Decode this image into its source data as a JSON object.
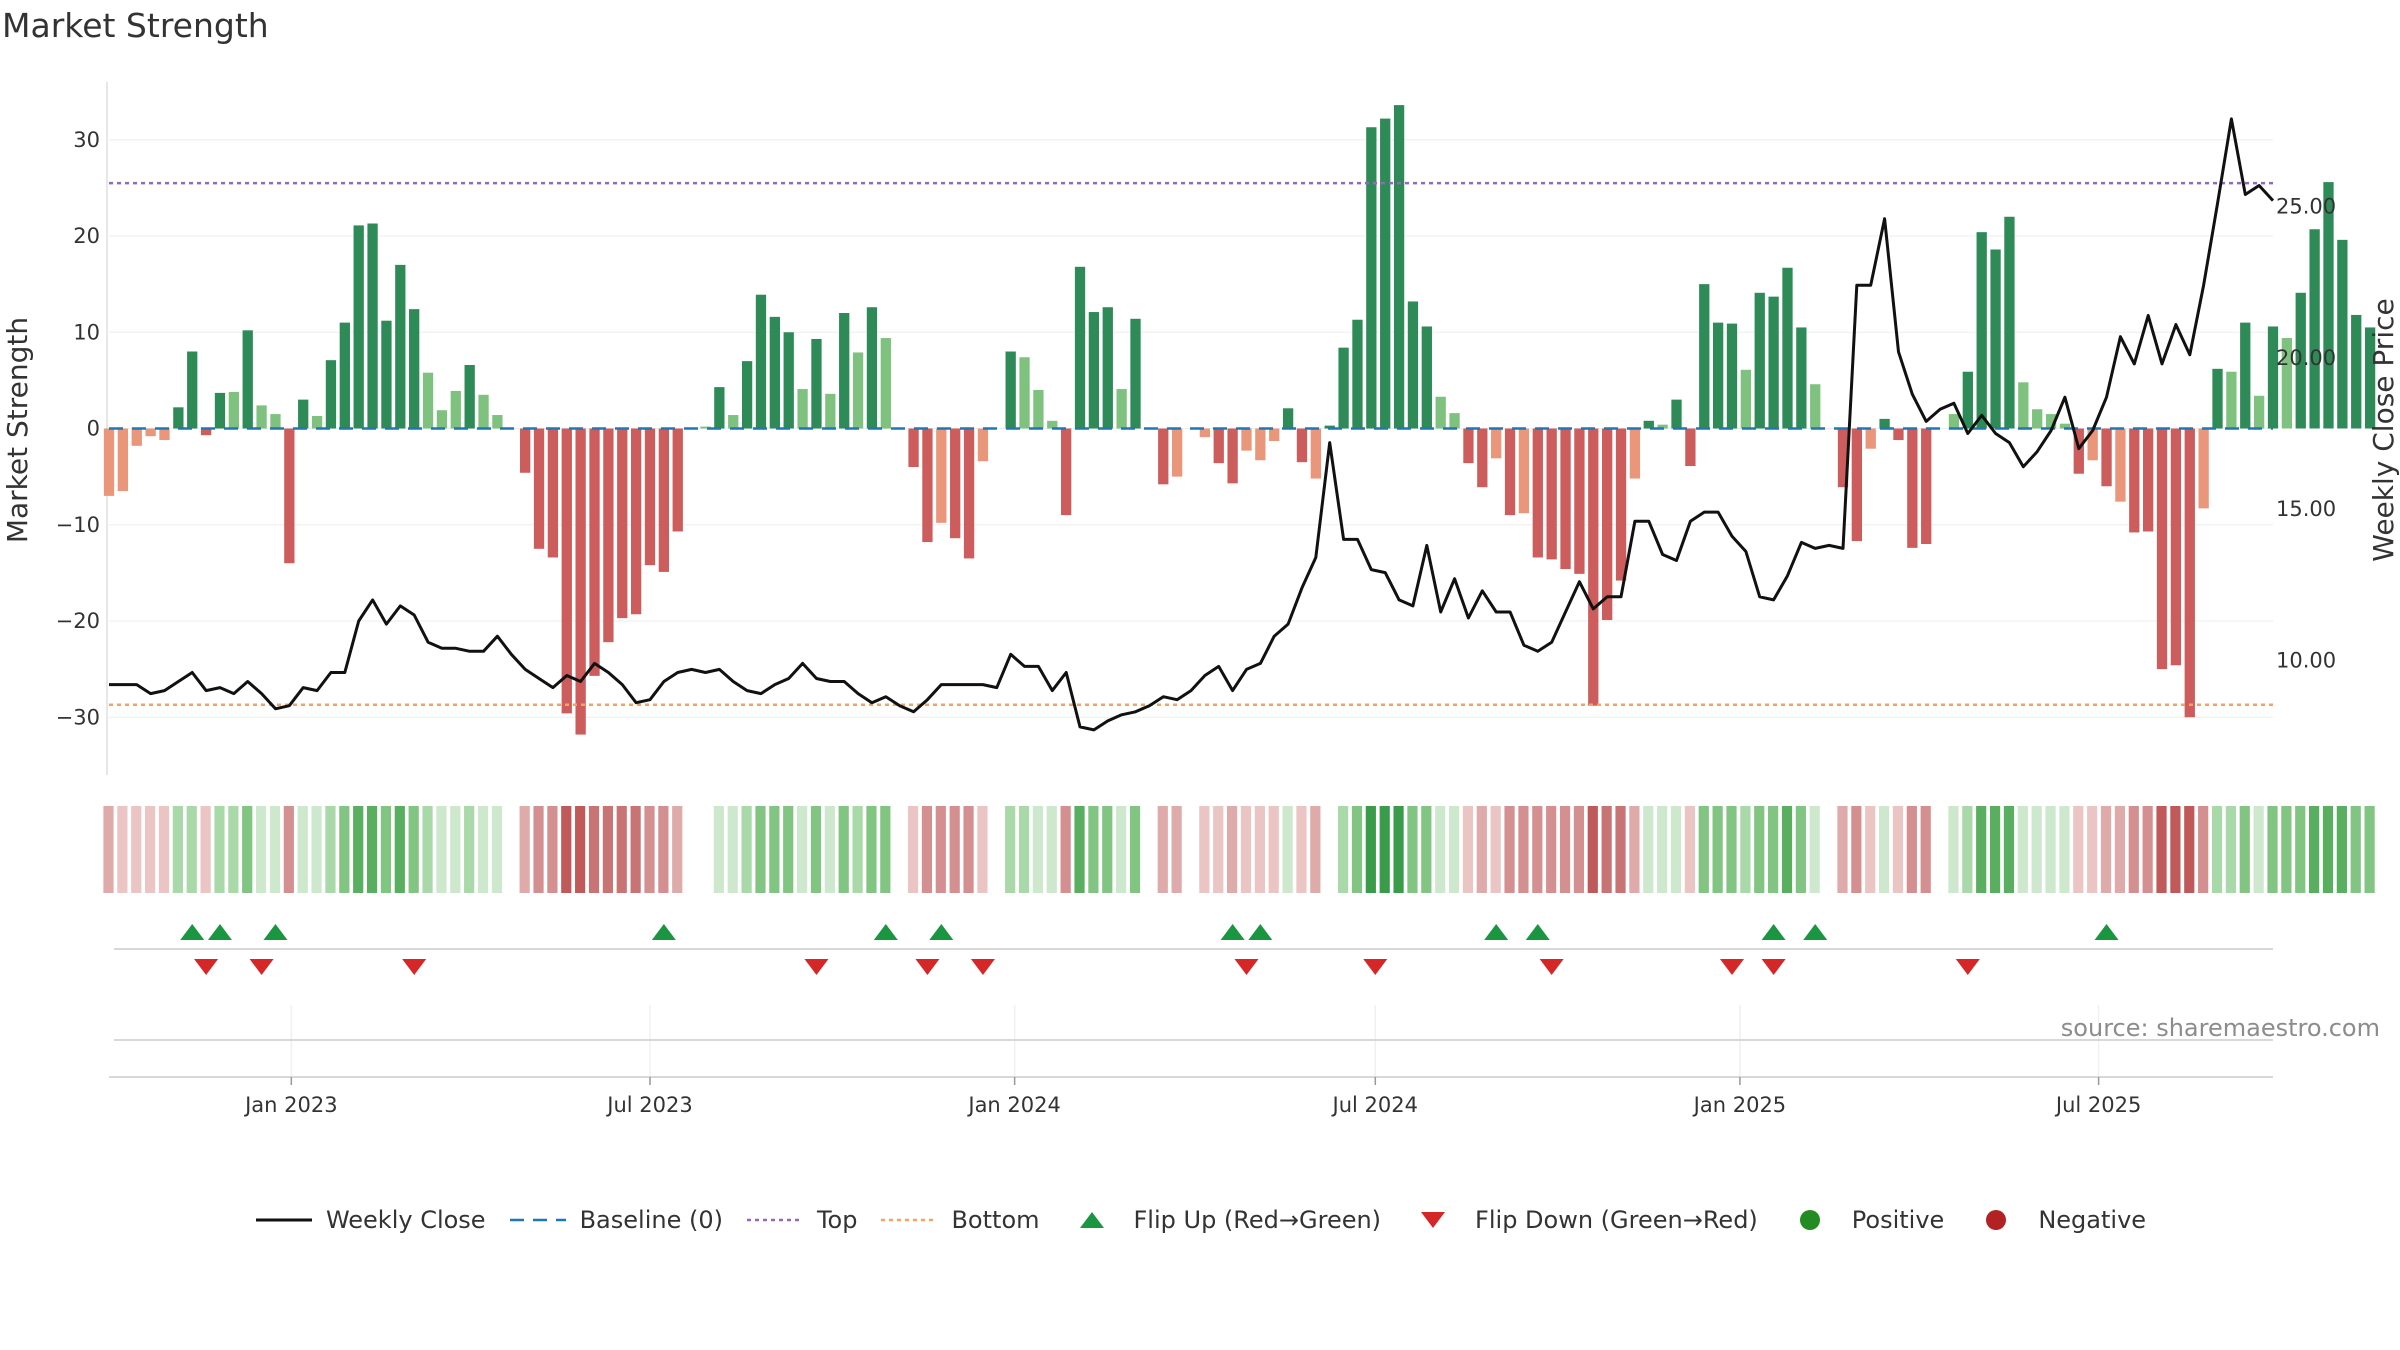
{
  "title": "Market Strength",
  "source_text": "source: sharemaestro.com",
  "colors": {
    "strong_green": "#2e8b57",
    "light_green": "#7fc27f",
    "strong_red": "#cd5c5c",
    "light_red": "#e9967a",
    "close_line": "#111111",
    "baseline": "#1f77b4",
    "top": "#9467bd",
    "bottom": "#f4a460",
    "flip_up": "#1a9641",
    "flip_down": "#d62728",
    "positive": "#228b22",
    "negative": "#b22222"
  },
  "legend": [
    {
      "key": "close",
      "label": "Weekly Close",
      "icon": "line-icon"
    },
    {
      "key": "baseline",
      "label": "Baseline (0)",
      "icon": "dashed-line-icon"
    },
    {
      "key": "top",
      "label": "Top",
      "icon": "dotted-line-icon"
    },
    {
      "key": "bottom",
      "label": "Bottom",
      "icon": "dotted-line-icon"
    },
    {
      "key": "flip_up",
      "label": "Flip Up (Red→Green)",
      "icon": "triangle-up-icon"
    },
    {
      "key": "flip_down",
      "label": "Flip Down (Green→Red)",
      "icon": "triangle-down-icon"
    },
    {
      "key": "positive",
      "label": "Positive",
      "icon": "circle-icon"
    },
    {
      "key": "negative",
      "label": "Negative",
      "icon": "circle-icon"
    }
  ],
  "chart_data": {
    "type": "bar",
    "ylabel": "Market Strength",
    "ylabel_right": "Weekly Close Price",
    "ylim": [
      -36,
      36
    ],
    "yticks": [
      30,
      20,
      10,
      0,
      -10,
      -20,
      -30
    ],
    "yticks_labels": [
      "30",
      "20",
      "10",
      "0",
      "−10",
      "−20",
      "−30"
    ],
    "y2lim": [
      6.21,
      29.12
    ],
    "y2ticks": [
      25,
      20,
      15,
      10
    ],
    "y2ticks_labels": [
      "25.00",
      "20.00",
      "15.00",
      "10.00"
    ],
    "top_level": 25.5,
    "bottom_level": -28.7,
    "x_start": "2022-10-01",
    "x_end": "2025-09-27",
    "xticks": [
      "2023-01-01",
      "2023-07-01",
      "2024-01-01",
      "2024-07-01",
      "2025-01-01",
      "2025-07-01"
    ],
    "xticks_labels": [
      "Jan 2023",
      "Jul 2023",
      "Jan 2024",
      "Jul 2024",
      "Jan 2025",
      "Jul 2025"
    ],
    "strength": [
      -7,
      -6.5,
      -1.8,
      -0.8,
      -1.2,
      2.2,
      8,
      -0.7,
      3.7,
      3.8,
      10.2,
      2.4,
      1.5,
      -14,
      3,
      1.3,
      7.1,
      11,
      21.1,
      21.3,
      11.2,
      17,
      12.4,
      5.8,
      1.9,
      3.9,
      6.6,
      3.5,
      1.4,
      0,
      -4.6,
      -12.5,
      -13.4,
      -29.6,
      -31.8,
      -25.7,
      -22.2,
      -19.7,
      -19.3,
      -14.2,
      -14.9,
      -10.7,
      0,
      0.2,
      4.3,
      1.4,
      7,
      13.9,
      11.6,
      10,
      4.1,
      9.3,
      3.6,
      12,
      7.9,
      12.6,
      9.4,
      0,
      -4,
      -11.8,
      -9.8,
      -11.4,
      -13.5,
      -3.4,
      0,
      8,
      7.4,
      4,
      0.8,
      -9,
      16.8,
      12.1,
      12.6,
      4.1,
      11.4,
      0,
      -5.8,
      -5,
      0,
      -0.9,
      -3.6,
      -5.7,
      -2.3,
      -3.3,
      -1.3,
      2.1,
      -3.5,
      -5.2,
      0.3,
      8.4,
      11.3,
      31.3,
      32.2,
      33.6,
      13.2,
      10.6,
      3.3,
      1.6,
      -3.6,
      -6.1,
      -3.1,
      -9,
      -8.8,
      -13.4,
      -13.6,
      -14.6,
      -15.1,
      -28.8,
      -19.9,
      -15.8,
      -5.2,
      0.8,
      0.4,
      3,
      -3.9,
      15,
      11,
      10.9,
      6.1,
      14.1,
      13.7,
      16.7,
      10.5,
      4.6,
      0,
      -6.1,
      -11.7,
      -2.1,
      1,
      -1.2,
      -12.4,
      -12,
      0,
      1.5,
      5.9,
      20.4,
      18.6,
      22,
      4.8,
      2,
      1.5,
      0.5,
      -4.7,
      -3.3,
      -6,
      -7.6,
      -10.8,
      -10.7,
      -25,
      -24.6,
      -30,
      -8.3,
      6.2,
      5.9,
      11,
      3.4,
      10.6,
      9.4,
      14.1,
      20.7,
      25.6,
      19.6,
      11.8,
      10.5
    ],
    "weekly_close": [
      9.2,
      9.2,
      9.2,
      8.9,
      9.0,
      9.3,
      9.6,
      9.0,
      9.1,
      8.9,
      9.3,
      8.9,
      8.4,
      8.5,
      9.1,
      9.0,
      9.6,
      9.6,
      11.3,
      12.0,
      11.2,
      11.8,
      11.5,
      10.6,
      10.4,
      10.4,
      10.3,
      10.3,
      10.8,
      10.2,
      9.7,
      9.4,
      9.1,
      9.5,
      9.3,
      9.9,
      9.6,
      9.2,
      8.6,
      8.7,
      9.3,
      9.6,
      9.7,
      9.6,
      9.7,
      9.3,
      9.0,
      8.9,
      9.2,
      9.4,
      9.9,
      9.4,
      9.3,
      9.3,
      8.9,
      8.6,
      8.8,
      8.5,
      8.3,
      8.7,
      9.2,
      9.2,
      9.2,
      9.2,
      9.1,
      10.2,
      9.8,
      9.8,
      9.0,
      9.6,
      7.8,
      7.7,
      8.0,
      8.2,
      8.3,
      8.5,
      8.8,
      8.7,
      9.0,
      9.5,
      9.8,
      9.0,
      9.7,
      9.9,
      10.8,
      11.2,
      12.4,
      13.4,
      17.2,
      14.0,
      14.0,
      13.0,
      12.9,
      12.0,
      11.8,
      13.8,
      11.6,
      12.7,
      11.4,
      12.3,
      11.6,
      11.6,
      10.5,
      10.3,
      10.6,
      11.6,
      12.6,
      11.7,
      12.1,
      12.1,
      14.6,
      14.6,
      13.5,
      13.3,
      14.6,
      14.9,
      14.9,
      14.1,
      13.6,
      12.1,
      12.0,
      12.8,
      13.9,
      13.7,
      13.8,
      13.7,
      22.4,
      22.4,
      24.6,
      20.2,
      18.8,
      17.9,
      18.3,
      18.5,
      17.5,
      18.1,
      17.5,
      17.2,
      16.4,
      16.9,
      17.6,
      18.7,
      17.0,
      17.6,
      18.7,
      20.7,
      19.8,
      21.4,
      19.8,
      21.1,
      20.1,
      22.4,
      25.1,
      27.9,
      25.4,
      25.7,
      25.2
    ],
    "strength_strip_levels": [
      -2,
      -1,
      -1,
      -1,
      -1,
      2,
      2,
      -1,
      2,
      2,
      3,
      1,
      1,
      -3,
      1,
      1,
      2,
      3,
      4,
      4,
      3,
      4,
      3,
      2,
      1,
      1,
      2,
      1,
      1,
      0,
      -2,
      -3,
      -3,
      -5,
      -5,
      -4,
      -4,
      -4,
      -4,
      -3,
      -3,
      -2,
      0,
      0,
      1,
      1,
      2,
      3,
      3,
      3,
      1,
      3,
      1,
      3,
      2,
      3,
      3,
      0,
      -1,
      -3,
      -3,
      -3,
      -3,
      -1,
      0,
      2,
      2,
      1,
      1,
      -3,
      4,
      3,
      3,
      1,
      3,
      0,
      -2,
      -2,
      0,
      -1,
      -1,
      -2,
      -1,
      -1,
      -1,
      1,
      -1,
      -2,
      0,
      2,
      3,
      5,
      5,
      5,
      3,
      3,
      1,
      1,
      -1,
      -2,
      -1,
      -3,
      -3,
      -3,
      -3,
      -3,
      -3,
      -5,
      -4,
      -4,
      -2,
      1,
      1,
      1,
      -1,
      3,
      3,
      3,
      2,
      3,
      3,
      4,
      3,
      1,
      0,
      -2,
      -3,
      -1,
      1,
      -1,
      -3,
      -3,
      0,
      1,
      2,
      4,
      4,
      4,
      1,
      1,
      1,
      1,
      -1,
      -1,
      -2,
      -2,
      -3,
      -3,
      -5,
      -5,
      -5,
      -3,
      2,
      2,
      3,
      1,
      3,
      3,
      3,
      4,
      4,
      4,
      3,
      3
    ],
    "flip_up_dates": [
      "2022-11-12",
      "2022-11-26",
      "2022-12-24",
      "2023-07-08",
      "2023-10-28",
      "2023-11-25",
      "2024-04-20",
      "2024-05-04",
      "2024-08-31",
      "2024-09-21",
      "2025-01-18",
      "2025-02-08",
      "2025-07-05"
    ],
    "flip_down_dates": [
      "2022-11-19",
      "2022-12-17",
      "2023-03-04",
      "2023-09-23",
      "2023-11-18",
      "2023-12-16",
      "2024-04-27",
      "2024-07-01",
      "2024-09-28",
      "2024-12-28",
      "2025-01-18",
      "2025-04-26"
    ]
  }
}
